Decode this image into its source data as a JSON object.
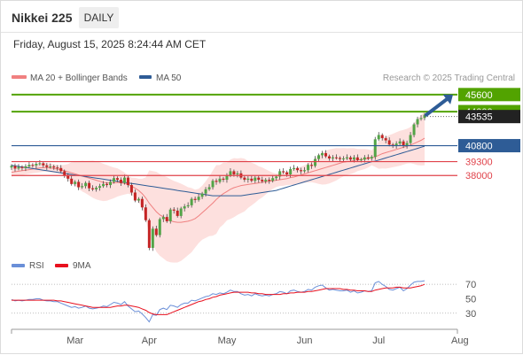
{
  "header": {
    "title": "Nikkei 225",
    "period": "DAILY",
    "datetime": "Friday, August 15, 2025 8:24:44 AM CET"
  },
  "legend": {
    "ma20": "MA 20 + Bollinger Bands",
    "ma50": "MA 50",
    "credit": "Research © 2025 Trading Central",
    "rsi": "RSI",
    "rsi_ma": "9MA"
  },
  "colors": {
    "bull": "#52a447",
    "bear": "#c42424",
    "ma20": "#f08080",
    "band_fill": "#fde0de",
    "ma50": "#2e5c96",
    "resistance": "#52a300",
    "support": "#e0424a",
    "pivot": "#2e5c96",
    "current_price": "#222222",
    "arrow": "#2e5c96",
    "rsi": "#6a8fd8",
    "rsi_ma": "#e8101e"
  },
  "chart_data": [
    {
      "type": "candlestick",
      "title": "Nikkei 225",
      "xlabel": "",
      "ylabel": "",
      "x_tick_labels": [
        "Mar",
        "Apr",
        "May",
        "Jun",
        "Jul",
        "Aug"
      ],
      "ylim": [
        30700,
        46500
      ],
      "x_start": "2025-02-05",
      "close": [
        38900,
        38650,
        38800,
        38700,
        38850,
        39000,
        38950,
        39100,
        39150,
        38950,
        38800,
        38850,
        38750,
        38700,
        38400,
        38000,
        37700,
        37200,
        37400,
        36900,
        37000,
        37300,
        36800,
        36700,
        36850,
        37000,
        37200,
        37100,
        37400,
        37750,
        37600,
        37300,
        37800,
        37100,
        36400,
        35650,
        35800,
        35000,
        33800,
        31200,
        33000,
        32400,
        33900,
        34100,
        33700,
        34800,
        34700,
        34200,
        34900,
        35100,
        35200,
        35800,
        35700,
        36000,
        36300,
        36700,
        36900,
        37500,
        37400,
        37700,
        37600,
        38000,
        38400,
        38100,
        38200,
        37800,
        37600,
        37700,
        37500,
        37800,
        37600,
        37450,
        37600,
        37500,
        37750,
        37900,
        38400,
        38300,
        38100,
        38600,
        38700,
        38500,
        38400,
        38500,
        39000,
        38900,
        39550,
        39900,
        40100,
        39800,
        39600,
        39700,
        39650,
        39550,
        39600,
        39700,
        39500,
        39700,
        39450,
        39500,
        39700,
        39600,
        39750,
        41400,
        41800,
        41500,
        41300,
        40900,
        40800,
        41000,
        41200,
        40800,
        41050,
        41800,
        42800,
        43300,
        43400,
        43700
      ],
      "series": [
        {
          "name": "MA 20",
          "values": [
            38300,
            38350,
            38400,
            38450,
            38500,
            38550,
            38600,
            38650,
            38700,
            38750,
            38750,
            38700,
            38650,
            38600,
            38550,
            38450,
            38350,
            38250,
            38150,
            38050,
            37950,
            37850,
            37750,
            37650,
            37550,
            37450,
            37350,
            37300,
            37300,
            37300,
            37350,
            37300,
            37250,
            37150,
            37000,
            36800,
            36600,
            36300,
            35900,
            35400,
            35000,
            34600,
            34300,
            34100,
            33900,
            33750,
            33650,
            33600,
            33600,
            33650,
            33700,
            33800,
            33950,
            34200,
            34500,
            34800,
            35100,
            35400,
            35750,
            36050,
            36300,
            36500,
            36700,
            36850,
            36950,
            37050,
            37100,
            37150,
            37200,
            37250,
            37300,
            37350,
            37400,
            37450,
            37500,
            37550,
            37600,
            37650,
            37700,
            37800,
            37850,
            37950,
            38050,
            38150,
            38250,
            38350,
            38450,
            38550,
            38650,
            38750,
            38850,
            38950,
            39050,
            39150,
            39250,
            39300,
            39350,
            39400,
            39450,
            39500,
            39550,
            39600,
            39650,
            39750,
            39900,
            40050,
            40150,
            40250,
            40350,
            40450,
            40550,
            40650,
            40750,
            40850,
            41000,
            41150,
            41300,
            41500
          ]
        },
        {
          "name": "MA 50",
          "values": [
            38950,
            38900,
            38850,
            38800,
            38750,
            38700,
            38650,
            38600,
            38550,
            38500,
            38450,
            38400,
            38350,
            38300,
            38250,
            38200,
            38150,
            38100,
            38050,
            38000,
            37950,
            37900,
            37850,
            37800,
            37750,
            37700,
            37650,
            37600,
            37550,
            37500,
            37450,
            37400,
            37350,
            37300,
            37250,
            37200,
            37150,
            37100,
            37050,
            37000,
            36950,
            36900,
            36850,
            36800,
            36750,
            36700,
            36650,
            36600,
            36550,
            36500,
            36450,
            36400,
            36350,
            36300,
            36250,
            36200,
            36150,
            36100,
            36100,
            36100,
            36100,
            36100,
            36100,
            36100,
            36100,
            36100,
            36150,
            36200,
            36250,
            36300,
            36350,
            36400,
            36450,
            36500,
            36550,
            36600,
            36700,
            36800,
            36900,
            37000,
            37100,
            37200,
            37300,
            37400,
            37500,
            37600,
            37700,
            37800,
            37900,
            38000,
            38100,
            38200,
            38300,
            38400,
            38500,
            38600,
            38700,
            38800,
            38900,
            39000,
            39100,
            39200,
            39300,
            39350,
            39450,
            39550,
            39650,
            39750,
            39850,
            39950,
            40050,
            40150,
            40250,
            40350,
            40450,
            40550,
            40650,
            40750
          ]
        }
      ],
      "levels": [
        {
          "value": 45600,
          "role": "resistance"
        },
        {
          "value": 44000,
          "role": "resistance"
        },
        {
          "value": 43535,
          "role": "current_price"
        },
        {
          "value": 40800,
          "role": "pivot"
        },
        {
          "value": 39300,
          "role": "support"
        },
        {
          "value": 38000,
          "role": "support"
        }
      ],
      "level_labels": [
        "45600",
        "44000",
        "43535",
        "40800",
        "39300",
        "38000"
      ],
      "forecast_arrow": {
        "from": 43700,
        "to": 45600
      }
    },
    {
      "type": "line",
      "title": "RSI",
      "ylim": [
        15,
        80
      ],
      "y_ticks": [
        70,
        50,
        30
      ],
      "grid": [
        70,
        30
      ],
      "series": [
        {
          "name": "RSI",
          "values": [
            49,
            47,
            48,
            47,
            48,
            49,
            49,
            50,
            50,
            48,
            47,
            47,
            46,
            46,
            44,
            42,
            40,
            38,
            39,
            37,
            38,
            40,
            37,
            36,
            37,
            38,
            40,
            39,
            42,
            45,
            44,
            42,
            46,
            40,
            36,
            32,
            33,
            29,
            24,
            18,
            28,
            27,
            35,
            37,
            35,
            41,
            40,
            38,
            42,
            44,
            44,
            48,
            47,
            49,
            51,
            53,
            54,
            57,
            56,
            58,
            57,
            59,
            62,
            60,
            60,
            57,
            55,
            56,
            54,
            57,
            55,
            54,
            55,
            54,
            56,
            57,
            60,
            59,
            57,
            61,
            62,
            60,
            59,
            60,
            63,
            62,
            66,
            68,
            69,
            65,
            62,
            63,
            62,
            61,
            61,
            62,
            59,
            61,
            58,
            59,
            61,
            60,
            61,
            72,
            74,
            70,
            67,
            63,
            62,
            64,
            66,
            61,
            64,
            69,
            73,
            74,
            74,
            75
          ]
        },
        {
          "name": "9MA",
          "values": [
            48,
            48,
            48,
            48,
            48,
            48,
            48,
            48,
            48,
            48,
            48,
            48,
            48,
            47,
            47,
            46,
            45,
            44,
            43,
            42,
            41,
            40,
            39,
            38,
            38,
            38,
            38,
            38,
            38,
            39,
            40,
            40,
            41,
            41,
            40,
            39,
            38,
            36,
            34,
            31,
            29,
            28,
            28,
            28,
            28,
            30,
            32,
            34,
            36,
            38,
            40,
            42,
            44,
            46,
            47,
            49,
            50,
            52,
            53,
            55,
            56,
            57,
            58,
            59,
            59,
            59,
            59,
            59,
            58,
            58,
            57,
            57,
            56,
            56,
            56,
            56,
            56,
            57,
            57,
            58,
            58,
            59,
            59,
            59,
            60,
            60,
            61,
            62,
            63,
            64,
            64,
            64,
            64,
            64,
            63,
            63,
            62,
            62,
            61,
            61,
            61,
            60,
            60,
            62,
            63,
            64,
            65,
            65,
            65,
            66,
            66,
            65,
            65,
            65,
            66,
            67,
            68,
            70
          ]
        }
      ]
    }
  ]
}
